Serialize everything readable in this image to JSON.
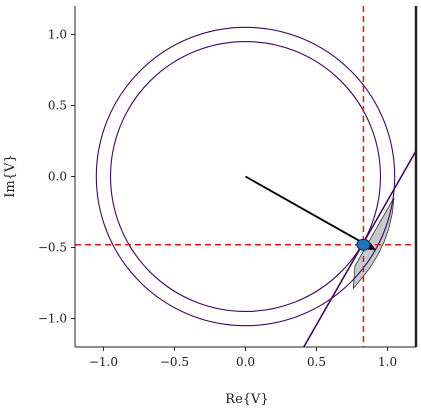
{
  "chart_data": {
    "type": "scatter",
    "title": "",
    "xlabel": "Re{V}",
    "ylabel": "Im{V}",
    "xlim": [
      -1.2,
      1.2
    ],
    "ylim": [
      -1.2,
      1.2
    ],
    "grid": false,
    "x_ticks": [
      -1.0,
      -0.5,
      0.0,
      0.5,
      1.0
    ],
    "x_tick_labels": [
      "−1.0",
      "−0.5",
      "0.0",
      "0.5",
      "1.0"
    ],
    "y_ticks": [
      -1.0,
      -0.5,
      0.0,
      0.5,
      1.0
    ],
    "y_tick_labels": [
      "−1.0",
      "−0.5",
      "0.0",
      "0.5",
      "1.0"
    ],
    "circles": [
      {
        "center": [
          0,
          0
        ],
        "radius": 0.95,
        "color": "#3d0a5c"
      },
      {
        "center": [
          0,
          0
        ],
        "radius": 1.05,
        "color": "#3d0a5c"
      }
    ],
    "boundary_line": {
      "points": [
        [
          0.41,
          -1.2
        ],
        [
          1.2,
          0.18
        ]
      ],
      "color": "#3d0a5c"
    },
    "reference_lines": {
      "x": 0.83,
      "y": -0.48,
      "color": "#e8141c",
      "style": "dashed"
    },
    "vector": {
      "from": [
        0,
        0
      ],
      "to": [
        0.92,
        -0.52
      ],
      "color": "#000000"
    },
    "operating_point": {
      "x": 0.83,
      "y": -0.48,
      "color": "#1f77b4",
      "edge_color": "#0a2a5c"
    },
    "feasible_region": {
      "polygon": [
        [
          0.79,
          -0.596
        ],
        [
          0.83,
          -0.525
        ],
        [
          0.87,
          -0.455
        ],
        [
          0.91,
          -0.385
        ],
        [
          0.95,
          -0.315
        ],
        [
          0.99,
          -0.245
        ],
        [
          1.03,
          -0.175
        ],
        [
          1.045,
          -0.15
        ],
        [
          1.034,
          -0.255
        ],
        [
          1.011,
          -0.357
        ],
        [
          0.977,
          -0.457
        ],
        [
          0.932,
          -0.551
        ],
        [
          0.877,
          -0.641
        ],
        [
          0.812,
          -0.724
        ],
        [
          0.759,
          -0.788
        ],
        [
          0.77,
          -0.63
        ]
      ],
      "fill": "#c8c8d0",
      "edge": "#333333"
    }
  }
}
